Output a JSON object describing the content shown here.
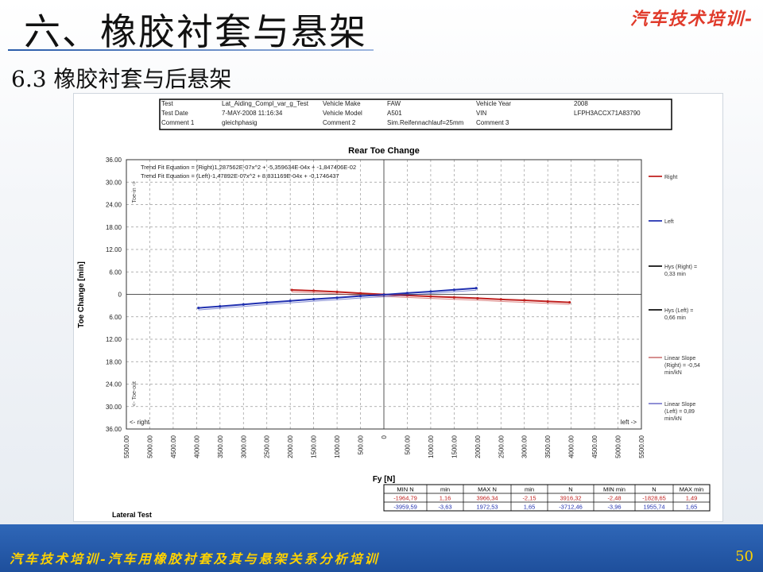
{
  "slide": {
    "title": "六、橡胶衬套与悬架",
    "subtitle": "6.3 橡胶衬套与后悬架",
    "brand": "汽车技术培训-",
    "footer": "汽车技术培训-汽车用橡胶衬套及其与悬架关系分析培训",
    "page_number": "50"
  },
  "header_table": [
    [
      "Test",
      "Lat_Aiding_Compl_var_g_Test",
      "Vehicle Make",
      "FAW",
      "Vehicle Year",
      "2008"
    ],
    [
      "Test Date",
      "7-MAY-2008 11:16:34",
      "Vehicle Model",
      "A501",
      "VIN",
      "LFPH3ACCX71A83790"
    ],
    [
      "Comment 1",
      "gleichphasig",
      "Comment 2",
      "Sim.Reifennachlauf=25mm",
      "Comment 3",
      ""
    ]
  ],
  "chart_data": {
    "type": "line",
    "title": "Rear Toe Change",
    "xlabel": "Fy [N]",
    "ylabel": "Toe Change [min]",
    "xlim": [
      -5500,
      5500
    ],
    "ylim": [
      -36,
      36
    ],
    "x_ticks": [
      -5500,
      -5000,
      -4500,
      -4000,
      -3500,
      -3000,
      -2500,
      -2000,
      -1500,
      -1000,
      -500,
      0,
      500,
      1000,
      1500,
      2000,
      2500,
      3000,
      3500,
      4000,
      4500,
      5000,
      5500
    ],
    "x_tick_labels": [
      "5500.00",
      "5000.00",
      "4500.00",
      "4000.00",
      "3500.00",
      "3000.00",
      "2500.00",
      "2000.00",
      "1500.00",
      "1000.00",
      "500.00",
      "0",
      "500.00",
      "1000.00",
      "1500.00",
      "2000.00",
      "2500.00",
      "3000.00",
      "3500.00",
      "4000.00",
      "4500.00",
      "5000.00",
      "5500.00"
    ],
    "y_ticks": [
      36,
      30,
      24,
      18,
      12,
      6,
      0,
      -6,
      -12,
      -18,
      -24,
      -30,
      -36
    ],
    "y_tick_labels": [
      "36.00",
      "30.00",
      "24.00",
      "18.00",
      "12.00",
      "6.00",
      "0",
      "6.00",
      "12.00",
      "18.00",
      "24.00",
      "30.00",
      "36.00"
    ],
    "grid": true,
    "annotations": {
      "trend_right": "Trend Fit Equation = (Right)1,287562E-07x^2 + -5,359634E-04x + -1,847406E-02",
      "trend_left": "Trend Fit Equation = (Left)-1,47892E-07x^2 + 8,831169E-04x + -0,1746437",
      "toe_in": "Toe-in ->",
      "toe_out": "<- Toe-out",
      "right_arrow_label": "<- right",
      "left_arrow_label": "left ->"
    },
    "series": [
      {
        "name": "Right",
        "color": "#c0201e",
        "x": [
          -1964.79,
          -1500,
          -1000,
          -500,
          0,
          500,
          1000,
          1500,
          2000,
          2500,
          3000,
          3500,
          3966.34
        ],
        "y": [
          1.16,
          0.95,
          0.65,
          0.3,
          -0.02,
          -0.3,
          -0.55,
          -0.8,
          -1.05,
          -1.35,
          -1.6,
          -1.9,
          -2.15
        ]
      },
      {
        "name": "Left",
        "color": "#2030b0",
        "x": [
          -3959.59,
          -3500,
          -3000,
          -2500,
          -2000,
          -1500,
          -1000,
          -500,
          0,
          500,
          1000,
          1500,
          1972.53
        ],
        "y": [
          -3.63,
          -3.2,
          -2.7,
          -2.2,
          -1.75,
          -1.3,
          -0.9,
          -0.45,
          -0.1,
          0.35,
          0.75,
          1.2,
          1.65
        ]
      }
    ],
    "legend": [
      {
        "label": "Right",
        "color": "#c0201e"
      },
      {
        "label": "Left",
        "color": "#2030b0"
      },
      {
        "label": "Hys (Right) = 0,33 min",
        "color": "#111111"
      },
      {
        "label": "Hys (Left) = 0,66 min",
        "color": "#111111"
      },
      {
        "label": "Linear Slope (Right) = -0,54 min/kN",
        "color": "#d08080"
      },
      {
        "label": "Linear Slope (Left) = 0,89 min/kN",
        "color": "#8080d0"
      }
    ],
    "legend_position": "right",
    "footer_label": "Lateral Test"
  },
  "stats_table": {
    "headers": [
      "MIN N",
      "min",
      "MAX N",
      "min",
      "N",
      "MIN min",
      "N",
      "MAX min"
    ],
    "rows": [
      {
        "color": "#c0201e",
        "cells": [
          "-1964,79",
          "1,16",
          "3966,34",
          "-2,15",
          "3916,32",
          "-2,48",
          "-1828,65",
          "1,49"
        ]
      },
      {
        "color": "#2030b0",
        "cells": [
          "-3959,59",
          "-3,63",
          "1972,53",
          "1,65",
          "-3712,46",
          "-3,96",
          "1955,74",
          "1,65"
        ]
      }
    ]
  }
}
